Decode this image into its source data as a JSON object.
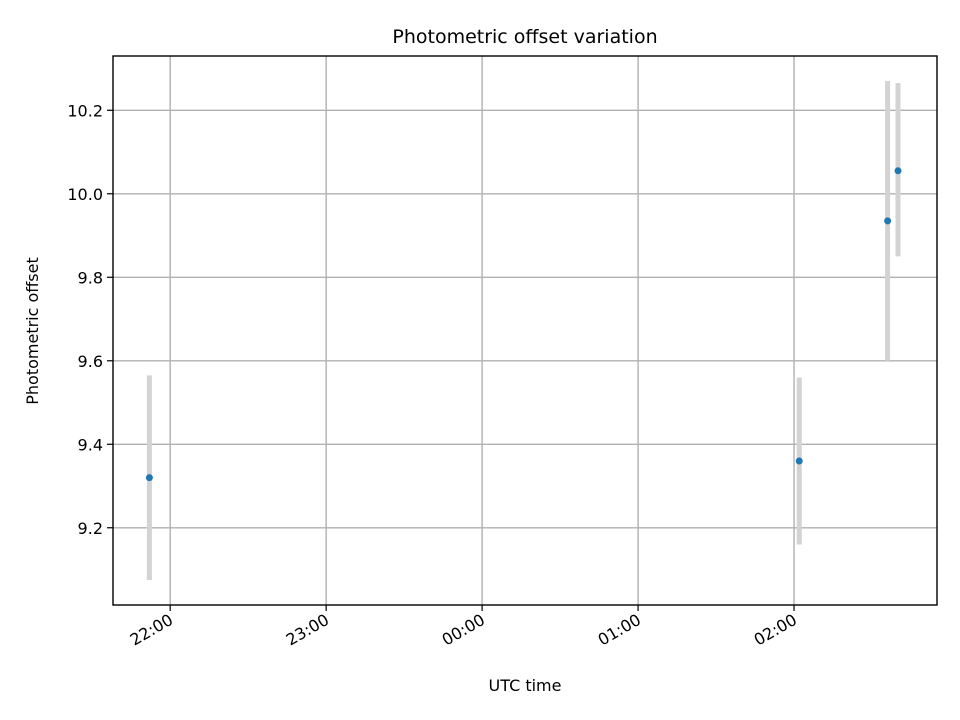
{
  "chart_data": {
    "type": "scatter",
    "title": "Photometric offset variation",
    "xlabel": "UTC time",
    "ylabel": "Photometric offset",
    "x_axis_type": "time",
    "xlim": [
      "21:38",
      "02:55"
    ],
    "ylim": [
      9.015,
      10.33
    ],
    "x_ticks": [
      "22:00",
      "23:00",
      "00:00",
      "01:00",
      "02:00"
    ],
    "y_ticks": [
      9.2,
      9.4,
      9.6,
      9.8,
      10.0,
      10.2
    ],
    "grid": true,
    "legend": false,
    "colors": {
      "point": "#1f77b4",
      "error_bar": "#d3d3d3",
      "grid": "#b0b0b0"
    },
    "points": [
      {
        "x": "21:52",
        "y": 9.32,
        "y_low": 9.075,
        "y_high": 9.565
      },
      {
        "x": "02:02",
        "y": 9.36,
        "y_low": 9.16,
        "y_high": 9.56
      },
      {
        "x": "02:36",
        "y": 9.935,
        "y_low": 9.6,
        "y_high": 10.27
      },
      {
        "x": "02:40",
        "y": 10.055,
        "y_low": 9.85,
        "y_high": 10.265
      }
    ]
  }
}
